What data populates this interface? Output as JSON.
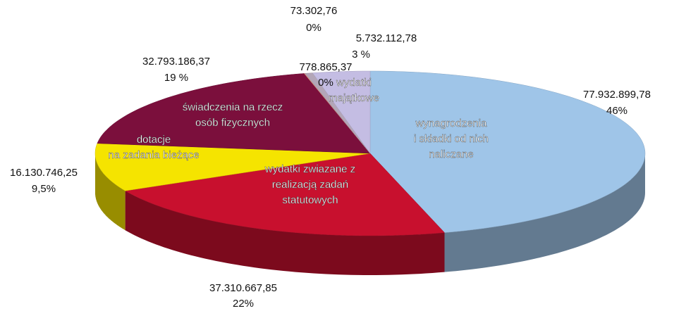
{
  "chart_data": {
    "type": "pie",
    "categories": [
      [
        "wynagrodzenia",
        "i składki od nich",
        "naliczane"
      ],
      [
        "wydatki zwiazane z",
        "realizacją zadań",
        "statutowych"
      ],
      [
        "dotacje",
        "na zadania bieżące"
      ],
      [
        "świadczenia na rzecz",
        "osób fizycznych"
      ],
      null,
      null,
      [
        "wydatki",
        "majątkowe"
      ]
    ],
    "values": [
      77932899.78,
      37310667.85,
      16130746.25,
      32793186.37,
      73302.76,
      778865.37,
      5732112.78
    ],
    "value_labels": [
      "77.932.899,78",
      "37.310.667,85",
      "16.130.746,25",
      "32.793.186,37",
      "73.302,76",
      "778.865,37",
      "5.732.112,78"
    ],
    "percentages": [
      46,
      22,
      9.5,
      19,
      0,
      0,
      3
    ],
    "percentage_labels": [
      "46%",
      "22%",
      "9,5%",
      "19 %",
      "0%",
      "0%",
      "3 %"
    ],
    "colors": [
      "#9fc5e8",
      "#c8102e",
      "#f5e400",
      "#7b0f3c",
      "#f0a58a",
      "#b3a6b8",
      "#c4bde3"
    ]
  }
}
